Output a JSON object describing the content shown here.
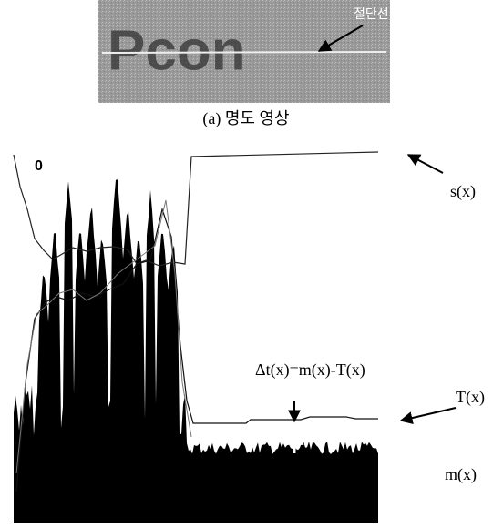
{
  "image": {
    "overlay_text": "Pcon",
    "cut_line_label": "절단선",
    "caption": "(a) 명도 영상"
  },
  "plot": {
    "origin_label": "0",
    "s_label": "s(x)",
    "delta_label": "Δt(x)=m(x)-T(x)",
    "t_label": "T(x)",
    "m_label": "m(x)"
  }
}
